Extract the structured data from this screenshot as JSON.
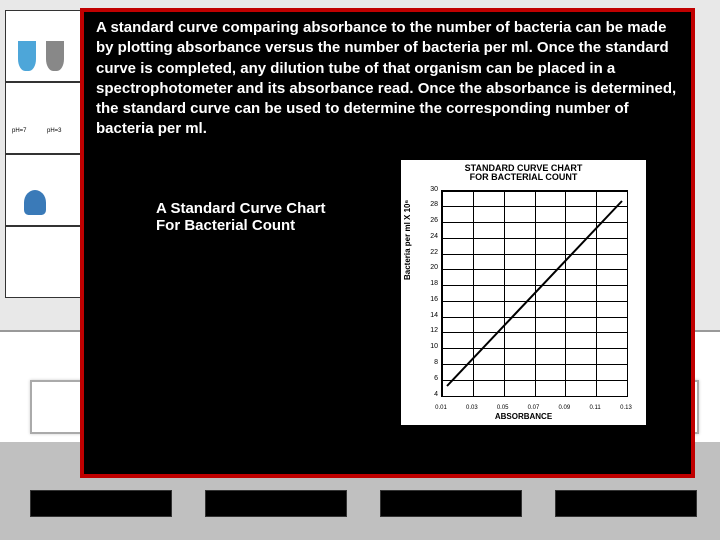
{
  "panel": {
    "body_text": "A standard curve comparing absorbance to the number of bacteria can be made by plotting absorbance versus the number of bacteria per ml. Once the standard curve is completed, any dilution tube of that organism can be placed in a spectrophotometer and its absorbance read. Once the absorbance is determined, the standard curve can be used to determine the corresponding number of bacteria per ml.",
    "caption_line1": "A Standard Curve Chart",
    "caption_line2": "For Bacterial Count",
    "border_color": "#c00000",
    "bg_color": "#000000",
    "text_color": "#ffffff"
  },
  "chart": {
    "title_line1": "STANDARD CURVE CHART",
    "title_line2": "FOR BACTERIAL COUNT",
    "xlabel": "ABSORBANCE",
    "ylabel": "Bacteria per ml X 10⁶",
    "yticks": [
      "30",
      "28",
      "26",
      "24",
      "22",
      "20",
      "18",
      "16",
      "14",
      "12",
      "10",
      "8",
      "6",
      "4"
    ],
    "xticks": [
      "0.01",
      "0.03",
      "0.05",
      "0.07",
      "0.09",
      "0.11",
      "0.13"
    ],
    "line_points": [
      [
        5,
        195
      ],
      [
        180,
        10
      ]
    ],
    "bg": "#ffffff",
    "grid_color": "#000000"
  },
  "lab": {
    "ph_labels": [
      "pH=7",
      "pH=3"
    ]
  }
}
